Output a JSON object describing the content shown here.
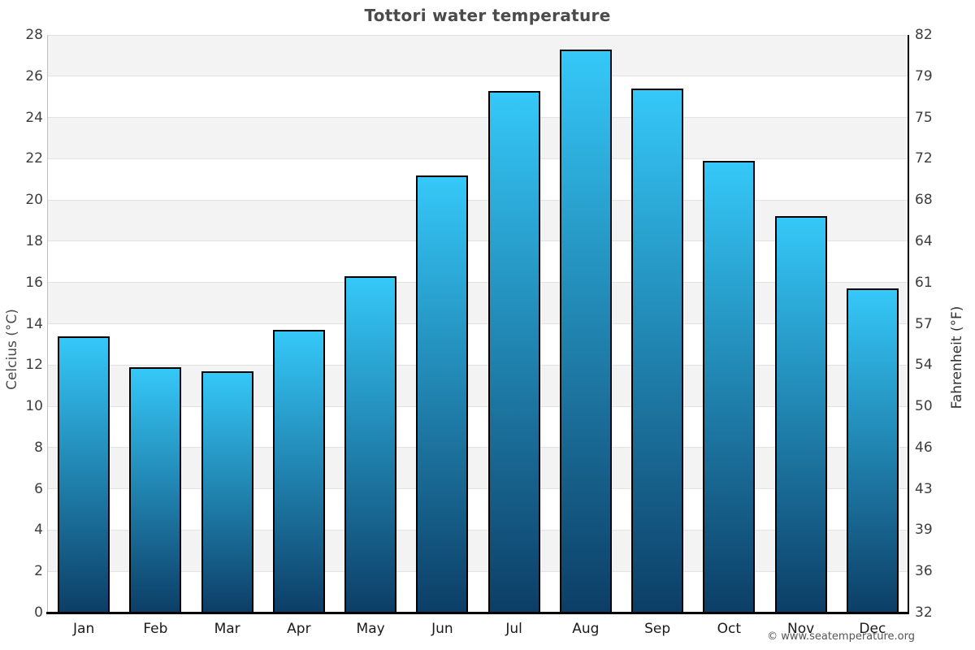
{
  "footer": {
    "credit": "© www.seatemperature.org"
  },
  "chart_data": {
    "type": "bar",
    "title": "Tottori water temperature",
    "categories": [
      "Jan",
      "Feb",
      "Mar",
      "Apr",
      "May",
      "Jun",
      "Jul",
      "Aug",
      "Sep",
      "Oct",
      "Nov",
      "Dec"
    ],
    "values": [
      13.4,
      11.9,
      11.7,
      13.7,
      16.3,
      21.2,
      25.3,
      27.3,
      25.4,
      21.9,
      19.2,
      15.7
    ],
    "ylim": [
      0,
      28
    ],
    "axes": {
      "left": {
        "label": "Celcius (°C)",
        "ticks": [
          0,
          2,
          4,
          6,
          8,
          10,
          12,
          14,
          16,
          18,
          20,
          22,
          24,
          26,
          28
        ]
      },
      "right": {
        "label": "Fahrenheit (°F)",
        "ticks": [
          32,
          36,
          39,
          43,
          46,
          50,
          54,
          57,
          61,
          64,
          68,
          72,
          75,
          79,
          82
        ]
      }
    },
    "grid": "horizontal bands every 2°C, alternating white / light gray",
    "legend": "none",
    "colors": {
      "bar_gradient_top": "#35c8f8",
      "bar_gradient_bottom": "#0c3e66",
      "bar_border": "#000000",
      "band_gray": "#f3f3f3",
      "gridline": "#e2e2e2",
      "title_text": "#4b4b4b"
    }
  }
}
